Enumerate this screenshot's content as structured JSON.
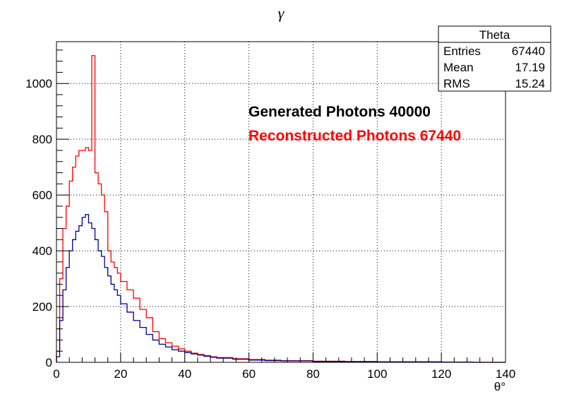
{
  "chart_data": {
    "type": "line",
    "title": "γ",
    "xlabel": "θ°",
    "ylabel": "",
    "xlim": [
      0,
      140
    ],
    "ylim": [
      0,
      1150
    ],
    "x_ticks": [
      0,
      20,
      40,
      60,
      80,
      100,
      120,
      140
    ],
    "y_ticks": [
      0,
      200,
      400,
      600,
      800,
      1000
    ],
    "grid": true,
    "stats_box": {
      "title": "Theta",
      "rows": [
        {
          "label": "Entries",
          "value": "67440"
        },
        {
          "label": "Mean",
          "value": "17.19"
        },
        {
          "label": "RMS",
          "value": "15.24"
        }
      ]
    },
    "annotations": [
      {
        "text": "Generated Photons 40000",
        "color": "#000000"
      },
      {
        "text": "Reconstructed Photons 67440",
        "color": "#ff0000"
      }
    ],
    "x": [
      0,
      1,
      2,
      3,
      4,
      5,
      6,
      7,
      8,
      9,
      10,
      11,
      12,
      13,
      14,
      15,
      16,
      17,
      18,
      19,
      20,
      22,
      24,
      26,
      28,
      30,
      32,
      34,
      36,
      38,
      40,
      42,
      44,
      46,
      48,
      50,
      55,
      60,
      65,
      70,
      80,
      90,
      100,
      110,
      120,
      130,
      140
    ],
    "series": [
      {
        "color": "#ff0000",
        "values": [
          40,
          300,
          480,
          560,
          650,
          700,
          740,
          760,
          760,
          770,
          760,
          1100,
          680,
          640,
          600,
          540,
          400,
          360,
          340,
          320,
          290,
          260,
          230,
          190,
          160,
          110,
          85,
          70,
          58,
          48,
          40,
          33,
          28,
          24,
          20,
          17,
          13,
          10,
          8,
          6,
          4,
          3,
          2,
          2,
          1,
          0,
          0
        ]
      },
      {
        "color": "#00008b",
        "values": [
          20,
          150,
          260,
          340,
          400,
          440,
          470,
          490,
          520,
          530,
          500,
          480,
          440,
          400,
          380,
          340,
          310,
          280,
          260,
          240,
          210,
          180,
          150,
          125,
          100,
          80,
          65,
          55,
          45,
          40,
          35,
          30,
          26,
          22,
          18,
          15,
          11,
          8,
          6,
          5,
          3,
          2,
          1,
          1,
          1,
          0,
          0
        ]
      }
    ]
  }
}
